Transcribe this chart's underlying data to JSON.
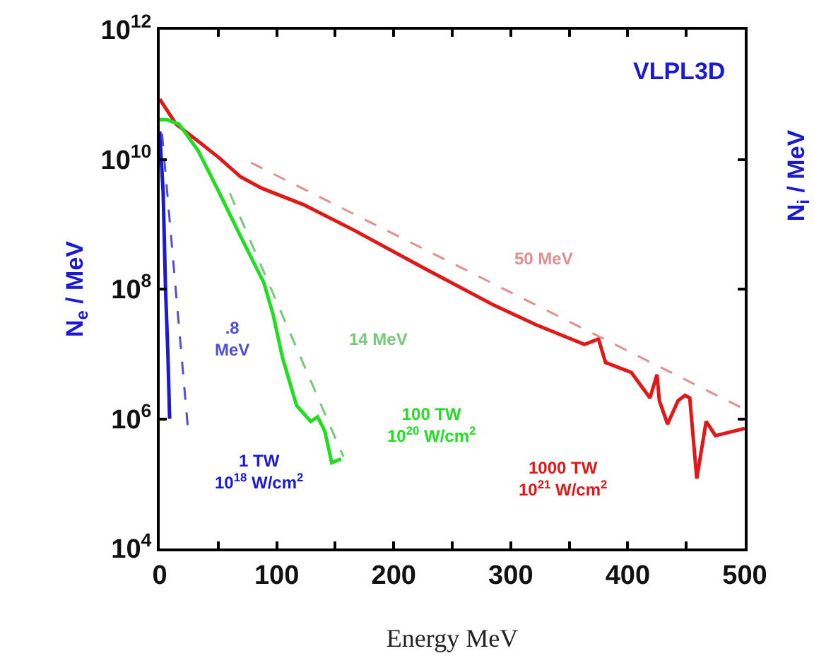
{
  "chart_data": {
    "type": "line",
    "title": "VLPL3D",
    "xlabel": "Energy MeV",
    "ylabel": "N$_{e}$ / MeV",
    "y2label": "N$_{i}$ / MeV",
    "log": "y",
    "grid": false,
    "legend": false,
    "marker": "none",
    "xlim": [
      0,
      500
    ],
    "xticks": [
      0,
      {
        "value": 50,
        "label": null
      },
      100,
      {
        "value": 150,
        "label": null
      },
      200,
      {
        "value": 250,
        "label": null
      },
      300,
      {
        "value": 350,
        "label": null
      },
      400,
      {
        "value": 450,
        "label": null
      },
      500
    ],
    "ylim": [
      10000,
      1000000000000
    ],
    "yticks": [
      {
        "value": 10000,
        "label": "10$^{4}$"
      },
      {
        "value": 1000000,
        "label": "10$^{6}$"
      },
      {
        "value": 100000000,
        "label": "10$^{8}$"
      },
      {
        "value": 10000000000,
        "label": "10$^{10}$"
      },
      {
        "value": 1000000000000,
        "label": "10$^{12}$"
      }
    ],
    "series": [
      {
        "name": "1000 TW\n10$^{21}$ W/cm$^{2}$",
        "color": "#e01818",
        "line_style": "solid",
        "x": [
          0,
          14,
          33,
          51,
          69,
          87,
          123,
          166,
          226,
          286,
          322,
          363,
          375,
          381,
          403,
          419,
          425,
          427,
          434,
          443,
          449,
          453,
          459,
          467,
          475,
          500
        ],
        "values": [
          85000000000,
          35000000000,
          19000000000,
          10500000000,
          5400000000,
          3600000000,
          2000000000,
          810000000,
          210000000,
          56000000,
          28000000,
          14000000,
          17000000,
          7400000,
          5200000,
          2100000,
          4800000,
          1900000,
          830000,
          1900000,
          2300000,
          2100000,
          120000,
          910000,
          550000,
          710000
        ]
      },
      {
        "name": "50 MeV",
        "color": "#e09090",
        "line_style": "dashed",
        "x": [
          78,
          500
        ],
        "values": [
          8900000000,
          1400000
        ]
      },
      {
        "name": "100 TW\n10$^{20}$ W/cm$^{2}$",
        "color": "#22dd22",
        "line_style": "solid",
        "x": [
          0,
          6,
          16.5,
          33,
          49,
          69,
          89,
          97,
          105,
          117,
          129,
          135,
          141,
          145,
          147,
          155
        ],
        "values": [
          41000000000,
          41000000000,
          35000000000,
          13500000000,
          3600000000,
          660000000,
          126000000,
          40000000,
          8700000,
          1600000,
          910000,
          1070000,
          650000,
          310000,
          210000,
          240000
        ]
      },
      {
        "name": "14 MeV",
        "color": "#77c877",
        "line_style": "dashed",
        "x": [
          60,
          157
        ],
        "values": [
          3000000000,
          260000
        ]
      },
      {
        "name": "1 TW\n10$^{18}$ W/cm$^{2}$",
        "color": "#1a1ad0",
        "line_style": "solid",
        "x": [
          0,
          3,
          5,
          7,
          8.5
        ],
        "values": [
          27000000000,
          3000000000,
          100000000,
          10000000,
          1000000
        ]
      },
      {
        "name": ".8\nMeV",
        "color": "#5050d0",
        "line_style": "dashed",
        "x": [
          2,
          24
        ],
        "values": [
          25000000000,
          760000
        ]
      }
    ]
  }
}
